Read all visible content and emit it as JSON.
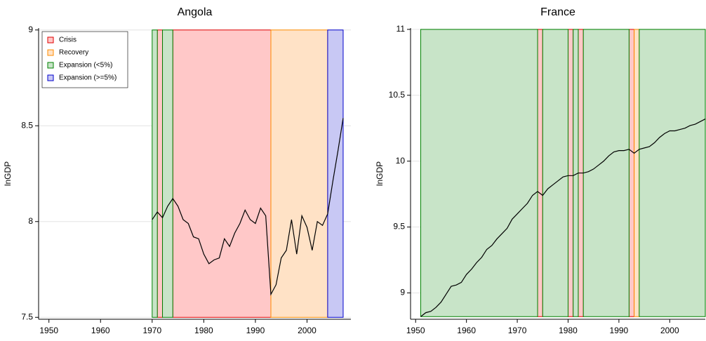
{
  "chart_data": [
    {
      "type": "line",
      "title": "Angola",
      "y_label": "lnGDP",
      "legend": "upper left",
      "grid": true,
      "regimes": [
        {
          "name": "Crisis",
          "color": "#e00000",
          "fill": "#ffc8c8"
        },
        {
          "name": "Recovery",
          "color": "#ff8c00",
          "fill": "#ffe2c6"
        },
        {
          "name": "Expansion (<5%)",
          "color": "#008000",
          "fill": "#c8e4c8"
        },
        {
          "name": "Expansion (>=5%)",
          "color": "#0000cc",
          "fill": "#c8c8f4"
        }
      ],
      "shading": [
        [
          [
            1971,
            1972
          ],
          [
            1974,
            1993
          ]
        ],
        [
          [
            1993,
            2004
          ]
        ],
        [
          [
            1970,
            1971
          ],
          [
            1972,
            1974
          ]
        ],
        [
          [
            2004,
            2007
          ]
        ]
      ],
      "shade_ylim": [
        7.5,
        9
      ],
      "xlim": [
        1948,
        2008.5
      ],
      "xticks": [
        1950,
        1960,
        1970,
        1980,
        1990,
        2000
      ],
      "ylim": [
        7.49,
        9.01
      ],
      "yticks": [
        7.5,
        8,
        8.5,
        9
      ],
      "x": [
        1970,
        1971,
        1972,
        1973,
        1974,
        1975,
        1976,
        1977,
        1978,
        1979,
        1980,
        1981,
        1982,
        1983,
        1984,
        1985,
        1986,
        1987,
        1988,
        1989,
        1990,
        1991,
        1992,
        1993,
        1994,
        1995,
        1996,
        1997,
        1998,
        1999,
        2000,
        2001,
        2002,
        2003,
        2004,
        2005,
        2006,
        2007
      ],
      "values": [
        8.01,
        8.05,
        8.02,
        8.08,
        8.12,
        8.08,
        8.01,
        7.99,
        7.92,
        7.91,
        7.83,
        7.78,
        7.8,
        7.81,
        7.91,
        7.87,
        7.94,
        7.99,
        8.06,
        8.01,
        7.99,
        8.07,
        8.03,
        7.62,
        7.67,
        7.81,
        7.85,
        8.01,
        7.83,
        8.03,
        7.97,
        7.85,
        8.0,
        7.98,
        8.04,
        8.21,
        8.37,
        8.54
      ],
      "color": "#000000"
    },
    {
      "type": "line",
      "title": "France",
      "y_label": "lnGDP",
      "grid": true,
      "shading": [
        [
          [
            1974,
            1975
          ],
          [
            1980,
            1981
          ],
          [
            1982,
            1983
          ],
          [
            1992,
            1993
          ]
        ],
        [
          [
            1993,
            1994
          ]
        ],
        [
          [
            1951,
            1974
          ],
          [
            1975,
            1980
          ],
          [
            1981,
            1982
          ],
          [
            1983,
            1992
          ],
          [
            1994,
            2007
          ]
        ],
        []
      ],
      "shade_ylim": [
        8.82,
        11
      ],
      "xlim": [
        1949,
        2007
      ],
      "xticks": [
        1950,
        1960,
        1970,
        1980,
        1990,
        2000
      ],
      "ylim": [
        8.8,
        11.01
      ],
      "yticks": [
        9,
        9.5,
        10,
        10.5,
        11
      ],
      "x": [
        1951,
        1952,
        1953,
        1954,
        1955,
        1956,
        1957,
        1958,
        1959,
        1960,
        1961,
        1962,
        1963,
        1964,
        1965,
        1966,
        1967,
        1968,
        1969,
        1970,
        1971,
        1972,
        1973,
        1974,
        1975,
        1976,
        1977,
        1978,
        1979,
        1980,
        1981,
        1982,
        1983,
        1984,
        1985,
        1986,
        1987,
        1988,
        1989,
        1990,
        1991,
        1992,
        1993,
        1994,
        1995,
        1996,
        1997,
        1998,
        1999,
        2000,
        2001,
        2002,
        2003,
        2004,
        2005,
        2006,
        2007
      ],
      "values": [
        8.82,
        8.85,
        8.86,
        8.89,
        8.93,
        8.99,
        9.05,
        9.06,
        9.08,
        9.14,
        9.18,
        9.23,
        9.27,
        9.33,
        9.36,
        9.41,
        9.45,
        9.49,
        9.56,
        9.6,
        9.64,
        9.68,
        9.74,
        9.77,
        9.74,
        9.79,
        9.82,
        9.85,
        9.88,
        9.89,
        9.89,
        9.91,
        9.91,
        9.92,
        9.94,
        9.97,
        10.0,
        10.04,
        10.07,
        10.08,
        10.08,
        10.09,
        10.06,
        10.09,
        10.1,
        10.11,
        10.14,
        10.18,
        10.21,
        10.23,
        10.23,
        10.24,
        10.25,
        10.27,
        10.28,
        10.3,
        10.32
      ],
      "color": "#000000"
    }
  ]
}
